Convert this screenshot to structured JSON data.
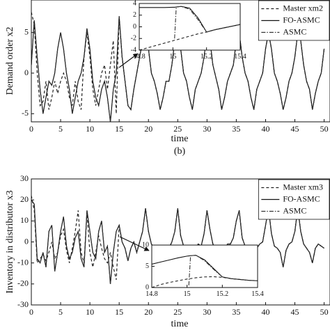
{
  "chart_data": [
    {
      "type": "line",
      "xlabel": "time",
      "ylabel": "Demand order x2",
      "caption": "(b)",
      "xlim": [
        0,
        51
      ],
      "ylim": [
        -6,
        9
      ],
      "xticks": [
        0,
        5,
        10,
        15,
        20,
        25,
        30,
        35,
        40,
        45,
        50
      ],
      "yticks": [
        -5,
        0,
        5
      ],
      "legend": "upper right",
      "grid": false,
      "x": [
        0,
        0.5,
        1,
        1.5,
        2,
        2.5,
        3,
        3.5,
        4,
        4.5,
        5,
        5.5,
        6,
        6.5,
        7,
        7.5,
        8,
        8.5,
        9,
        9.5,
        10,
        10.5,
        11,
        11.5,
        12,
        12.5,
        13,
        13.5,
        14,
        14.5,
        15,
        15.5,
        16,
        16.5,
        17,
        17.5,
        18,
        18.5,
        19,
        19.5,
        20,
        20.5,
        21,
        21.5,
        22,
        22.5,
        23,
        23.5,
        24,
        24.5,
        25,
        25.5,
        26,
        26.5,
        27,
        27.5,
        28,
        28.5,
        29,
        29.5,
        30,
        30.5,
        31,
        31.5,
        32,
        32.5,
        33,
        33.5,
        34,
        34.5,
        35,
        35.5,
        36,
        36.5,
        37,
        37.5,
        38,
        38.5,
        39,
        39.5,
        40,
        40.5,
        41,
        41.5,
        42,
        42.5,
        43,
        43.5,
        44,
        44.5,
        45,
        45.5,
        46,
        46.5,
        47,
        47.5,
        48,
        48.5,
        49,
        49.5,
        50
      ],
      "series": [
        {
          "name": "Master xm2",
          "color": "#222222",
          "linestyle": "dashed",
          "values": [
            7.5,
            6,
            0,
            -4,
            -3.5,
            -1,
            -4.5,
            -3,
            -1,
            -2.5,
            -1,
            0,
            -1,
            -3,
            -4,
            -1,
            -3.5,
            -4.5,
            2,
            5,
            2,
            -2,
            -4,
            -2,
            0,
            1,
            -2,
            1,
            4,
            -5,
            7,
            2,
            -1,
            -4,
            -4.5,
            -2,
            0,
            2,
            4,
            5,
            3,
            0,
            -1,
            -2.5,
            -4.5,
            -3,
            -1,
            -1,
            1,
            4,
            5,
            3,
            0,
            -1,
            -3,
            -4.5,
            -2,
            -1,
            0,
            2,
            5,
            4,
            1,
            -0.5,
            -2,
            -4.5,
            -3,
            -1,
            0,
            1,
            4,
            5,
            2,
            0,
            -1,
            -3,
            -4.5,
            -2,
            -1,
            0,
            3,
            5,
            3,
            0,
            -1,
            -2.5,
            -4.5,
            -3,
            -1,
            0,
            2,
            5,
            4,
            1,
            -1,
            -2,
            -4.5,
            -2.5,
            -1,
            0,
            3
          ]
        },
        {
          "name": "FO-ASMC",
          "color": "#111111",
          "linestyle": "solid",
          "values": [
            1,
            6.5,
            2,
            -2,
            -5,
            -3,
            -1,
            -1.5,
            0,
            3,
            5,
            3,
            0,
            -2,
            -5,
            -3,
            -1,
            0,
            2,
            5.5,
            3,
            -1,
            -3,
            -4,
            -2,
            -1,
            -3,
            -6,
            -2,
            0,
            7,
            2,
            -1,
            -4,
            -4.5,
            -2,
            0,
            2,
            4,
            5,
            3,
            0,
            -1,
            -2.5,
            -4.5,
            -3,
            -1,
            -1,
            1,
            4,
            5,
            3,
            0,
            -1,
            -3,
            -4.5,
            -2,
            -1,
            0,
            2,
            5,
            4,
            1,
            -0.5,
            -2,
            -4.5,
            -3,
            -1,
            0,
            1,
            4,
            5,
            2,
            0,
            -1,
            -3,
            -4.5,
            -2,
            -1,
            0,
            3,
            5,
            3,
            0,
            -1,
            -2.5,
            -4.5,
            -3,
            -1,
            0,
            2,
            5,
            4,
            1,
            -1,
            -2,
            -4.5,
            -2.5,
            -1,
            0,
            3
          ]
        },
        {
          "name": "ASMC",
          "color": "#333333",
          "linestyle": "dashdot",
          "values": [
            1,
            6.5,
            2,
            -2,
            -5,
            -3,
            -1,
            -1.5,
            0,
            3,
            5,
            3,
            0,
            -2,
            -5,
            -3,
            -1,
            0,
            2,
            5.5,
            3,
            -1,
            -3,
            -4,
            -2,
            -1,
            -3,
            -6,
            -2,
            0,
            7,
            2,
            -1,
            -4,
            -4.5,
            -2,
            0,
            2,
            4,
            5,
            3,
            0,
            -1,
            -2.5,
            -4.5,
            -3,
            -1,
            -1,
            1,
            4,
            5,
            3,
            0,
            -1,
            -3,
            -4.5,
            -2,
            -1,
            0,
            2,
            5,
            4,
            1,
            -0.5,
            -2,
            -4.5,
            -3,
            -1,
            0,
            1,
            4,
            5,
            2,
            0,
            -1,
            -3,
            -4.5,
            -2,
            -1,
            0,
            3,
            5,
            3,
            0,
            -1,
            -2.5,
            -4.5,
            -3,
            -1,
            0,
            2,
            5,
            4,
            1,
            -1,
            -2,
            -4.5,
            -2.5,
            -1,
            0,
            3
          ]
        }
      ]
    },
    {
      "type": "line",
      "xlim": [
        14.8,
        15.4
      ],
      "ylim": [
        -4,
        4
      ],
      "xticks": [
        14.8,
        15,
        15.2,
        15.4
      ],
      "yticks": [
        -4,
        -2,
        0,
        2,
        4
      ],
      "x": [
        14.8,
        14.85,
        14.9,
        14.95,
        15,
        15.01,
        15.02,
        15.05,
        15.1,
        15.15,
        15.2,
        15.25,
        15.3,
        15.35,
        15.4
      ],
      "series": [
        {
          "name": "Master xm2",
          "color": "#222222",
          "linestyle": "dashed",
          "values": [
            -4,
            -3.6,
            -3.2,
            -2.8,
            -2.4,
            -2.3,
            -2.25,
            -2,
            -1.6,
            -1.2,
            -0.9,
            -0.5,
            -0.2,
            0.1,
            0.4
          ]
        },
        {
          "name": "FO-ASMC",
          "color": "#111111",
          "linestyle": "solid",
          "values": [
            3.3,
            3.3,
            3.3,
            3.3,
            3.35,
            3.35,
            3.4,
            3.5,
            3.2,
            1.5,
            -0.9,
            -0.5,
            -0.2,
            0.1,
            0.4
          ]
        },
        {
          "name": "ASMC",
          "color": "#333333",
          "linestyle": "dashdot",
          "values": [
            null,
            null,
            null,
            null,
            null,
            -2,
            3.4,
            3.5,
            3.0,
            1.2,
            -0.9,
            -0.5,
            -0.2,
            0.1,
            0.4
          ]
        }
      ]
    },
    {
      "type": "line",
      "xlabel": "time",
      "ylabel": "Inventory in distributor x3",
      "xlim": [
        0,
        51
      ],
      "ylim": [
        -30,
        30
      ],
      "xticks": [
        0,
        5,
        10,
        15,
        20,
        25,
        30,
        35,
        40,
        45,
        50
      ],
      "yticks": [
        -30,
        -20,
        -10,
        0,
        10,
        20,
        30
      ],
      "legend": "upper right",
      "grid": false,
      "x": [
        0,
        0.5,
        1,
        1.5,
        2,
        2.5,
        3,
        3.5,
        4,
        4.5,
        5,
        5.5,
        6,
        6.5,
        7,
        7.5,
        8,
        8.5,
        9,
        9.5,
        10,
        10.5,
        11,
        11.5,
        12,
        12.5,
        13,
        13.5,
        14,
        14.5,
        15,
        15.5,
        16,
        16.5,
        17,
        17.5,
        18,
        18.5,
        19,
        19.5,
        20,
        20.5,
        21,
        21.5,
        22,
        22.5,
        23,
        23.5,
        24,
        24.5,
        25,
        25.5,
        26,
        26.5,
        27,
        27.5,
        28,
        28.5,
        29,
        29.5,
        30,
        30.5,
        31,
        31.5,
        32,
        32.5,
        33,
        33.5,
        34,
        34.5,
        35,
        35.5,
        36,
        36.5,
        37,
        37.5,
        38,
        38.5,
        39,
        39.5,
        40,
        40.5,
        41,
        41.5,
        42,
        42.5,
        43,
        43.5,
        44,
        44.5,
        45,
        45.5,
        46,
        46.5,
        47,
        47.5,
        48,
        48.5,
        49,
        49.5,
        50
      ],
      "series": [
        {
          "name": "Master xm3",
          "color": "#222222",
          "linestyle": "dashed",
          "values": [
            22,
            15,
            -10,
            -8,
            -6,
            -9,
            -5,
            0,
            -8,
            -5,
            3,
            6,
            -4,
            -10,
            -3,
            5,
            15,
            -5,
            -10,
            14,
            -5,
            -12,
            -5,
            3,
            -3,
            -8,
            -10,
            -5,
            -12,
            -18,
            8,
            0,
            -3,
            -9,
            -3,
            0,
            -5,
            0,
            5,
            16,
            5,
            -1,
            -3,
            -6,
            -13,
            -4,
            -2,
            -3,
            0,
            5,
            16,
            3,
            -2,
            -3,
            -5,
            -13,
            -3,
            -1,
            -2,
            4,
            15,
            6,
            -1,
            -3,
            -5,
            -12,
            -4,
            -1,
            -1,
            2,
            10,
            15,
            2,
            -2,
            -3,
            -6,
            -12,
            -3,
            -1,
            0,
            8,
            16,
            4,
            -2,
            -3,
            -5,
            -12,
            -4,
            -1,
            0,
            5,
            16,
            5,
            -1,
            -3,
            -5,
            -10,
            -3,
            -1,
            -2,
            -3
          ]
        },
        {
          "name": "FO-ASMC",
          "color": "#111111",
          "linestyle": "solid",
          "values": [
            20,
            18,
            -8,
            -10,
            -5,
            -12,
            5,
            8,
            -14,
            -5,
            5,
            12,
            -2,
            -8,
            -5,
            2,
            5,
            -8,
            -12,
            15,
            5,
            -5,
            -8,
            5,
            10,
            -5,
            -2,
            -20,
            -5,
            5,
            8,
            0,
            -3,
            -9,
            -3,
            0,
            -5,
            0,
            5,
            16,
            5,
            -1,
            -3,
            -6,
            -13,
            -4,
            -2,
            -3,
            0,
            5,
            16,
            3,
            -2,
            -3,
            -5,
            -13,
            -3,
            -1,
            -2,
            4,
            15,
            6,
            -1,
            -3,
            -5,
            -12,
            -4,
            -1,
            -1,
            2,
            10,
            15,
            2,
            -2,
            -3,
            -6,
            -12,
            -3,
            -1,
            0,
            8,
            16,
            4,
            -2,
            -3,
            -5,
            -12,
            -4,
            -1,
            0,
            5,
            16,
            5,
            -1,
            -3,
            -5,
            -10,
            -3,
            -1,
            -2,
            -3
          ]
        },
        {
          "name": "ASMC",
          "color": "#333333",
          "linestyle": "dashdot",
          "values": [
            20,
            18,
            -8,
            -10,
            -5,
            -12,
            5,
            8,
            -14,
            -5,
            5,
            12,
            -2,
            -8,
            -5,
            2,
            5,
            -8,
            -12,
            15,
            5,
            -5,
            -8,
            5,
            10,
            -5,
            -2,
            -20,
            -5,
            5,
            8,
            0,
            -3,
            -9,
            -3,
            0,
            -5,
            0,
            5,
            16,
            5,
            -1,
            -3,
            -6,
            -13,
            -4,
            -2,
            -3,
            0,
            5,
            16,
            3,
            -2,
            -3,
            -5,
            -13,
            -3,
            -1,
            -2,
            4,
            15,
            6,
            -1,
            -3,
            -5,
            -12,
            -4,
            -1,
            -1,
            2,
            10,
            15,
            2,
            -2,
            -3,
            -6,
            -12,
            -3,
            -1,
            0,
            8,
            16,
            4,
            -2,
            -3,
            -5,
            -12,
            -4,
            -1,
            0,
            5,
            16,
            5,
            -1,
            -3,
            -5,
            -10,
            -3,
            -1,
            -2,
            -3
          ]
        }
      ]
    },
    {
      "type": "line",
      "xlim": [
        14.8,
        15.4
      ],
      "ylim": [
        0,
        10
      ],
      "xticks": [
        14.8,
        15,
        15.2,
        15.4
      ],
      "yticks": [
        0,
        5,
        10
      ],
      "x": [
        14.8,
        14.85,
        14.9,
        14.95,
        15,
        15.01,
        15.02,
        15.05,
        15.1,
        15.15,
        15.2,
        15.25,
        15.3,
        15.35,
        15.4
      ],
      "series": [
        {
          "name": "Master xm3",
          "color": "#222222",
          "linestyle": "dashed",
          "values": [
            0,
            0.7,
            1.2,
            1.6,
            2,
            2.05,
            2.1,
            2.3,
            2.5,
            2.55,
            2.4,
            2.1,
            1.9,
            1.7,
            1.6
          ]
        },
        {
          "name": "FO-ASMC",
          "color": "#111111",
          "linestyle": "solid",
          "values": [
            5.5,
            6,
            6.5,
            7,
            7.4,
            7.45,
            7.5,
            7.6,
            6.5,
            4.5,
            2.5,
            2.1,
            1.9,
            1.7,
            1.6
          ]
        },
        {
          "name": "ASMC",
          "color": "#333333",
          "linestyle": "dashdot",
          "values": [
            null,
            null,
            null,
            null,
            null,
            0.5,
            7.5,
            7.6,
            6.3,
            4.3,
            2.5,
            2.1,
            1.9,
            1.7,
            1.6
          ]
        }
      ]
    }
  ]
}
